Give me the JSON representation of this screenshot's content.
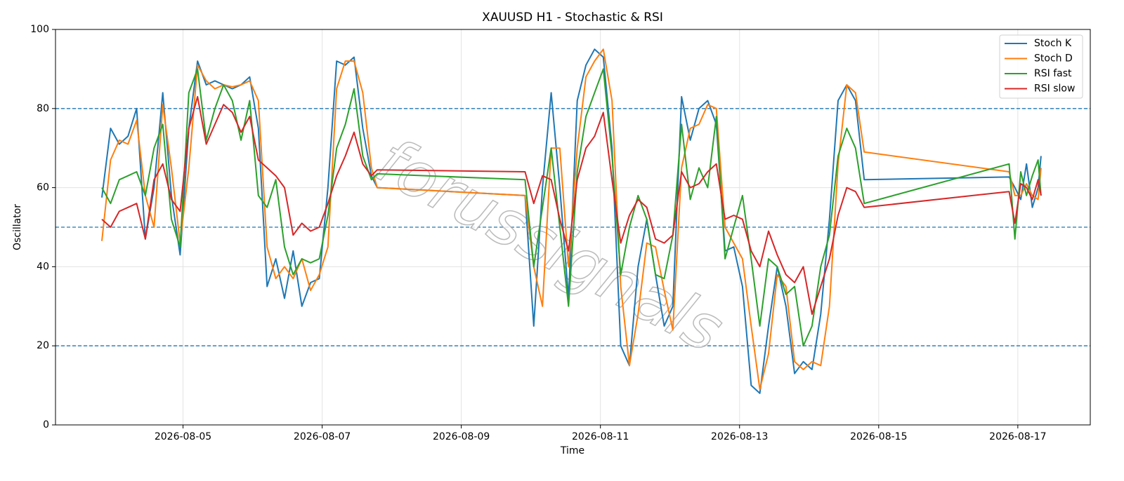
{
  "chart_data": {
    "type": "line",
    "title": "XAUUSD H1 - Stochastic & RSI",
    "x_label": "Time",
    "y_label": "Oscillator",
    "watermark": "forussignals",
    "x": [
      "2026-08-03 20:00",
      "2026-08-03 23:00",
      "2026-08-04 02:00",
      "2026-08-04 05:00",
      "2026-08-04 08:00",
      "2026-08-04 11:00",
      "2026-08-04 14:00",
      "2026-08-04 17:00",
      "2026-08-04 20:00",
      "2026-08-04 23:00",
      "2026-08-05 02:00",
      "2026-08-05 05:00",
      "2026-08-05 08:00",
      "2026-08-05 11:00",
      "2026-08-05 14:00",
      "2026-08-05 17:00",
      "2026-08-05 20:00",
      "2026-08-05 23:00",
      "2026-08-06 02:00",
      "2026-08-06 05:00",
      "2026-08-06 08:00",
      "2026-08-06 11:00",
      "2026-08-06 14:00",
      "2026-08-06 17:00",
      "2026-08-06 20:00",
      "2026-08-06 23:00",
      "2026-08-07 02:00",
      "2026-08-07 05:00",
      "2026-08-07 08:00",
      "2026-08-07 11:00",
      "2026-08-07 14:00",
      "2026-08-07 17:00",
      "2026-08-07 19:00",
      "2026-08-09 22:00",
      "2026-08-10 01:00",
      "2026-08-10 04:00",
      "2026-08-10 07:00",
      "2026-08-10 10:00",
      "2026-08-10 13:00",
      "2026-08-10 16:00",
      "2026-08-10 19:00",
      "2026-08-10 22:00",
      "2026-08-11 01:00",
      "2026-08-11 04:00",
      "2026-08-11 07:00",
      "2026-08-11 10:00",
      "2026-08-11 13:00",
      "2026-08-11 16:00",
      "2026-08-11 19:00",
      "2026-08-11 22:00",
      "2026-08-12 01:00",
      "2026-08-12 04:00",
      "2026-08-12 07:00",
      "2026-08-12 10:00",
      "2026-08-12 13:00",
      "2026-08-12 16:00",
      "2026-08-12 19:00",
      "2026-08-12 22:00",
      "2026-08-13 01:00",
      "2026-08-13 04:00",
      "2026-08-13 07:00",
      "2026-08-13 10:00",
      "2026-08-13 13:00",
      "2026-08-13 16:00",
      "2026-08-13 19:00",
      "2026-08-13 22:00",
      "2026-08-14 01:00",
      "2026-08-14 04:00",
      "2026-08-14 07:00",
      "2026-08-14 10:00",
      "2026-08-14 13:00",
      "2026-08-14 16:00",
      "2026-08-14 19:00",
      "2026-08-16 21:00",
      "2026-08-16 23:00",
      "2026-08-17 01:00",
      "2026-08-17 03:00",
      "2026-08-17 05:00",
      "2026-08-17 07:00",
      "2026-08-17 08:00"
    ],
    "series": [
      {
        "name": "Stoch K",
        "color": "#1f77b4",
        "values": [
          57.5,
          75,
          71,
          73,
          80,
          47,
          60,
          84,
          58,
          43,
          75,
          92,
          86,
          87,
          86,
          85,
          86,
          88,
          75,
          35,
          42,
          32,
          44,
          30,
          36,
          37,
          60,
          92,
          91,
          93,
          75,
          63,
          60,
          58,
          25,
          60,
          84,
          60,
          32,
          82,
          91,
          95,
          93,
          70,
          20,
          15,
          40,
          52,
          38,
          25,
          30,
          83,
          72,
          80,
          82,
          76,
          44,
          45,
          35,
          10,
          8,
          25,
          40,
          30,
          13,
          16,
          14,
          28,
          52,
          82,
          86,
          82,
          62,
          62.7,
          60,
          57,
          66,
          55,
          60,
          68
        ]
      },
      {
        "name": "Stoch D",
        "color": "#ff7f0e",
        "values": [
          46.5,
          67,
          72,
          71,
          77,
          58,
          50,
          81,
          65,
          46,
          65,
          91,
          87,
          85,
          86,
          85.5,
          86,
          87,
          82,
          45,
          37,
          40,
          37,
          42,
          34,
          38,
          45,
          85,
          92,
          92,
          84,
          65,
          60,
          58,
          40,
          30,
          70,
          70,
          40,
          70,
          88,
          92,
          95,
          82,
          35,
          15,
          28,
          46,
          45,
          34,
          24,
          65,
          75,
          76,
          81,
          80,
          50,
          46,
          42,
          25,
          9,
          18,
          38,
          35,
          16,
          14,
          16,
          15,
          30,
          66,
          86,
          84,
          69,
          64,
          58,
          58,
          61,
          58,
          57,
          65
        ]
      },
      {
        "name": "RSI fast",
        "color": "#2ca02c",
        "values": [
          60,
          56,
          62,
          63,
          64,
          58,
          70,
          76,
          52,
          45,
          84,
          90,
          72,
          80,
          86,
          82,
          72,
          82,
          58,
          55,
          62,
          45,
          38,
          42,
          41,
          42,
          53,
          70,
          76,
          85,
          68,
          62,
          63.5,
          62,
          40,
          55,
          70,
          50,
          30,
          64,
          78,
          84,
          90,
          68,
          38,
          50,
          58,
          52,
          38,
          37,
          48,
          76,
          57,
          65,
          60,
          78,
          42,
          50,
          58,
          42,
          25,
          42,
          40,
          33,
          35,
          20,
          25,
          40,
          48,
          68,
          75,
          70,
          56,
          66,
          47,
          64,
          58,
          63,
          67,
          58
        ]
      },
      {
        "name": "RSI slow",
        "color": "#d62728",
        "values": [
          52,
          50,
          54,
          55,
          56,
          47,
          62,
          66,
          57,
          54,
          75,
          83,
          71,
          76,
          81,
          79,
          74,
          78,
          67,
          65,
          63,
          60,
          48,
          51,
          49,
          50,
          56,
          63,
          68,
          74,
          66,
          63,
          64.5,
          64,
          56,
          63,
          62,
          52,
          44,
          62,
          70,
          73,
          79,
          62,
          46,
          53,
          57,
          55,
          47,
          46,
          48,
          64,
          60,
          61,
          64,
          66,
          52,
          53,
          52,
          44,
          40,
          49,
          43,
          38,
          36,
          40,
          28,
          35,
          42,
          53,
          60,
          59,
          55,
          59,
          51,
          61,
          60,
          57,
          62,
          58
        ]
      }
    ],
    "hlines": [
      20,
      50,
      80
    ],
    "hline_color": "#1f77b4",
    "xlim": [
      "2026-08-03 04:00",
      "2026-08-18 01:00"
    ],
    "xticks": [
      "2026-08-05",
      "2026-08-07",
      "2026-08-09",
      "2026-08-11",
      "2026-08-13",
      "2026-08-15",
      "2026-08-17"
    ],
    "ylim": [
      0,
      100
    ],
    "yticks": [
      0,
      20,
      40,
      60,
      80,
      100
    ],
    "grid": true,
    "legend": "upper right"
  }
}
